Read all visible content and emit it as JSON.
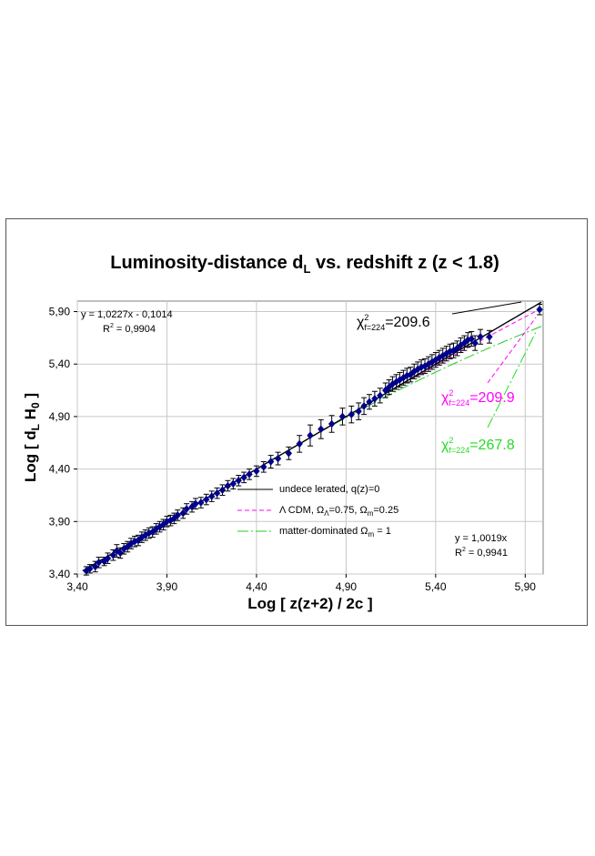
{
  "chart_data": {
    "type": "scatter",
    "title": "Luminosity-distance d",
    "title_sub": "L",
    "title_rest": " vs. redshift z (z < 1.8)",
    "xlabel": "Log [ z(z+2) / 2c ]",
    "ylabel_main": "Log [ d",
    "ylabel_sub1": "L",
    "ylabel_mid": " H",
    "ylabel_sub2": "0",
    "ylabel_end": " ]",
    "xlim": [
      3.4,
      6.0
    ],
    "ylim": [
      3.4,
      6.0
    ],
    "x_ticks": [
      3.4,
      3.9,
      4.4,
      4.9,
      5.4,
      5.9
    ],
    "y_ticks": [
      3.4,
      3.9,
      4.4,
      4.9,
      5.4,
      5.9
    ],
    "x_tick_labels": [
      "3,40",
      "3,90",
      "4,40",
      "4,90",
      "5,40",
      "5,90"
    ],
    "y_tick_labels": [
      "3,40",
      "3,90",
      "4,40",
      "4,90",
      "5,40",
      "5,90"
    ],
    "grid": true,
    "fit_left": {
      "equation": "y = 1,0227x - 0,1014",
      "r2": "R",
      "r2_sup": "2",
      "r2_value": " = 0,9904"
    },
    "fit_right": {
      "equation": "y = 1,0019x",
      "r2": "R",
      "r2_sup": "2",
      "r2_value": " = 0,9941"
    },
    "chi_labels": [
      {
        "chi": "χ",
        "sup": "2",
        "sub": "f=224",
        "value": "=209.6",
        "color": "#000000"
      },
      {
        "chi": "χ",
        "sup": "2",
        "sub": "f=224",
        "value": "=209.9",
        "color": "#ff00ff"
      },
      {
        "chi": "χ",
        "sup": "2",
        "sub": "f=224",
        "value": "=267.8",
        "color": "#22dd22"
      }
    ],
    "legend": [
      {
        "label_a": "undece lerated, q(z)=0",
        "color": "#000000",
        "style": "solid"
      },
      {
        "label_a": "Λ CDM, Ω",
        "sub1": "Λ",
        "label_b": "=0.75, Ω",
        "sub2": "m",
        "label_c": "=0.25",
        "color": "#ff00ff",
        "style": "dash"
      },
      {
        "label_a": "matter-dominated Ω",
        "sub1": "m",
        "label_b": " = 1",
        "color": "#22cc22",
        "style": "dashdot"
      }
    ],
    "series": [
      {
        "name": "data",
        "color": "#00008b",
        "points": [
          [
            3.45,
            3.43,
            0.04
          ],
          [
            3.47,
            3.45,
            0.04
          ],
          [
            3.5,
            3.47,
            0.05
          ],
          [
            3.52,
            3.51,
            0.05
          ],
          [
            3.55,
            3.52,
            0.04
          ],
          [
            3.57,
            3.55,
            0.05
          ],
          [
            3.6,
            3.58,
            0.05
          ],
          [
            3.62,
            3.62,
            0.06
          ],
          [
            3.64,
            3.6,
            0.05
          ],
          [
            3.66,
            3.64,
            0.05
          ],
          [
            3.68,
            3.66,
            0.05
          ],
          [
            3.7,
            3.69,
            0.05
          ],
          [
            3.72,
            3.71,
            0.05
          ],
          [
            3.74,
            3.72,
            0.05
          ],
          [
            3.76,
            3.75,
            0.05
          ],
          [
            3.78,
            3.77,
            0.05
          ],
          [
            3.8,
            3.79,
            0.05
          ],
          [
            3.82,
            3.8,
            0.05
          ],
          [
            3.84,
            3.83,
            0.05
          ],
          [
            3.86,
            3.85,
            0.05
          ],
          [
            3.88,
            3.87,
            0.05
          ],
          [
            3.9,
            3.9,
            0.05
          ],
          [
            3.92,
            3.91,
            0.05
          ],
          [
            3.94,
            3.93,
            0.05
          ],
          [
            3.96,
            3.96,
            0.05
          ],
          [
            3.99,
            3.98,
            0.05
          ],
          [
            4.01,
            4.02,
            0.05
          ],
          [
            4.04,
            4.04,
            0.05
          ],
          [
            4.06,
            4.07,
            0.05
          ],
          [
            4.09,
            4.08,
            0.05
          ],
          [
            4.12,
            4.11,
            0.05
          ],
          [
            4.15,
            4.14,
            0.05
          ],
          [
            4.18,
            4.17,
            0.05
          ],
          [
            4.21,
            4.2,
            0.05
          ],
          [
            4.24,
            4.24,
            0.05
          ],
          [
            4.27,
            4.26,
            0.05
          ],
          [
            4.3,
            4.29,
            0.05
          ],
          [
            4.33,
            4.32,
            0.05
          ],
          [
            4.36,
            4.35,
            0.05
          ],
          [
            4.4,
            4.38,
            0.05
          ],
          [
            4.44,
            4.42,
            0.05
          ],
          [
            4.48,
            4.47,
            0.06
          ],
          [
            4.52,
            4.5,
            0.06
          ],
          [
            4.58,
            4.55,
            0.06
          ],
          [
            4.64,
            4.64,
            0.08
          ],
          [
            4.7,
            4.72,
            0.1
          ],
          [
            4.76,
            4.78,
            0.09
          ],
          [
            4.82,
            4.83,
            0.08
          ],
          [
            4.88,
            4.9,
            0.08
          ],
          [
            4.93,
            4.92,
            0.08
          ],
          [
            4.97,
            4.95,
            0.08
          ],
          [
            5.0,
            5.0,
            0.08
          ],
          [
            5.03,
            5.04,
            0.07
          ],
          [
            5.06,
            5.07,
            0.07
          ],
          [
            5.09,
            5.1,
            0.07
          ],
          [
            5.12,
            5.15,
            0.07
          ],
          [
            5.14,
            5.18,
            0.07
          ],
          [
            5.16,
            5.21,
            0.07
          ],
          [
            5.18,
            5.23,
            0.07
          ],
          [
            5.2,
            5.25,
            0.07
          ],
          [
            5.22,
            5.27,
            0.07
          ],
          [
            5.24,
            5.29,
            0.07
          ],
          [
            5.26,
            5.3,
            0.07
          ],
          [
            5.28,
            5.33,
            0.07
          ],
          [
            5.3,
            5.35,
            0.07
          ],
          [
            5.32,
            5.37,
            0.07
          ],
          [
            5.34,
            5.38,
            0.07
          ],
          [
            5.36,
            5.4,
            0.07
          ],
          [
            5.38,
            5.42,
            0.07
          ],
          [
            5.4,
            5.44,
            0.07
          ],
          [
            5.42,
            5.46,
            0.07
          ],
          [
            5.44,
            5.48,
            0.07
          ],
          [
            5.46,
            5.5,
            0.07
          ],
          [
            5.48,
            5.52,
            0.07
          ],
          [
            5.5,
            5.53,
            0.07
          ],
          [
            5.52,
            5.55,
            0.07
          ],
          [
            5.54,
            5.58,
            0.07
          ],
          [
            5.56,
            5.6,
            0.07
          ],
          [
            5.58,
            5.63,
            0.07
          ],
          [
            5.6,
            5.64,
            0.07
          ],
          [
            5.62,
            5.6,
            0.07
          ],
          [
            5.65,
            5.66,
            0.07
          ],
          [
            5.7,
            5.66,
            0.06
          ],
          [
            5.98,
            5.92,
            0.05
          ]
        ]
      }
    ]
  }
}
